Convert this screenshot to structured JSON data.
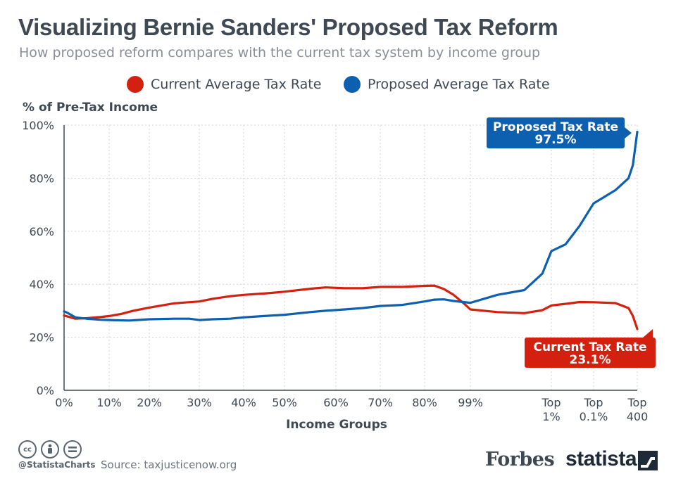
{
  "title": "Visualizing Bernie Sanders' Proposed Tax Reform",
  "subtitle": "How proposed reform compares with the current tax system by income group",
  "colors": {
    "current": "#d4200f",
    "proposed": "#0d5fb0",
    "axis": "#3e4954",
    "grid": "#d0d3d6"
  },
  "footer": {
    "handle": "@StatistaCharts",
    "source": "Source: taxjusticenow.org",
    "forbes": "Forbes",
    "statista": "statista",
    "icons": [
      "cc-icon",
      "by-icon",
      "nd-icon"
    ]
  },
  "chart_data": {
    "type": "line",
    "ylabel": "% of Pre-Tax Income",
    "xlabel": "Income Groups",
    "ylim": [
      0,
      100
    ],
    "yticks": [
      "0%",
      "20%",
      "40%",
      "60%",
      "80%",
      "100%"
    ],
    "x_tick_labels": [
      {
        "x": 0,
        "label": "0%"
      },
      {
        "x": 10,
        "label": "10%"
      },
      {
        "x": 20,
        "label": "20%"
      },
      {
        "x": 30,
        "label": "30%"
      },
      {
        "x": 40,
        "label": "40%"
      },
      {
        "x": 50,
        "label": "50%"
      },
      {
        "x": 60,
        "label": "60%"
      },
      {
        "x": 70,
        "label": "70%"
      },
      {
        "x": 80,
        "label": "80%"
      },
      {
        "x": 99,
        "label": "99%"
      },
      {
        "x": 99.9,
        "label": "Top 1%"
      },
      {
        "x": 99.99,
        "label": "Top 0.1%"
      },
      {
        "x": 100,
        "label": "Top 400"
      }
    ],
    "grid": true,
    "legend_position": "top",
    "series": [
      {
        "name": "Current Average Tax Rate",
        "color": "#d4200f",
        "callout": {
          "title": "Current Tax Rate",
          "value": "23.1%"
        },
        "points": [
          {
            "x": 0,
            "y": 28.2
          },
          {
            "x": 1.5,
            "y": 27.5
          },
          {
            "x": 2.5,
            "y": 27.0
          },
          {
            "x": 5,
            "y": 27.2
          },
          {
            "x": 8,
            "y": 27.6
          },
          {
            "x": 10,
            "y": 28.0
          },
          {
            "x": 13,
            "y": 28.8
          },
          {
            "x": 16,
            "y": 30.0
          },
          {
            "x": 20,
            "y": 31.2
          },
          {
            "x": 25,
            "y": 32.8
          },
          {
            "x": 30,
            "y": 33.5
          },
          {
            "x": 33,
            "y": 34.5
          },
          {
            "x": 37,
            "y": 35.5
          },
          {
            "x": 40,
            "y": 36.0
          },
          {
            "x": 45,
            "y": 36.5
          },
          {
            "x": 50,
            "y": 37.2
          },
          {
            "x": 55,
            "y": 38.3
          },
          {
            "x": 58,
            "y": 38.8
          },
          {
            "x": 62,
            "y": 38.5
          },
          {
            "x": 66,
            "y": 38.5
          },
          {
            "x": 70,
            "y": 39.0
          },
          {
            "x": 75,
            "y": 39.0
          },
          {
            "x": 80,
            "y": 39.4
          },
          {
            "x": 84,
            "y": 39.5
          },
          {
            "x": 88,
            "y": 38.2
          },
          {
            "x": 92,
            "y": 36.0
          },
          {
            "x": 96,
            "y": 33.0
          },
          {
            "x": 99,
            "y": 30.5
          },
          {
            "x": 99.3,
            "y": 29.5
          },
          {
            "x": 99.6,
            "y": 29.1
          },
          {
            "x": 99.8,
            "y": 30.2
          },
          {
            "x": 99.9,
            "y": 32.0
          },
          {
            "x": 99.93,
            "y": 32.6
          },
          {
            "x": 99.96,
            "y": 33.3
          },
          {
            "x": 99.99,
            "y": 33.2
          },
          {
            "x": 99.995,
            "y": 32.9
          },
          {
            "x": 99.998,
            "y": 31.0
          },
          {
            "x": 99.999,
            "y": 28.0
          },
          {
            "x": 100,
            "y": 23.1
          }
        ]
      },
      {
        "name": "Proposed Average Tax Rate",
        "color": "#0d5fb0",
        "callout": {
          "title": "Proposed Tax Rate",
          "value": "97.5%"
        },
        "points": [
          {
            "x": 0,
            "y": 29.8
          },
          {
            "x": 1,
            "y": 29.0
          },
          {
            "x": 2.5,
            "y": 27.5
          },
          {
            "x": 5,
            "y": 27.0
          },
          {
            "x": 8,
            "y": 26.6
          },
          {
            "x": 10,
            "y": 26.5
          },
          {
            "x": 15,
            "y": 26.3
          },
          {
            "x": 20,
            "y": 26.8
          },
          {
            "x": 25,
            "y": 27.0
          },
          {
            "x": 28,
            "y": 27.0
          },
          {
            "x": 30,
            "y": 26.5
          },
          {
            "x": 33,
            "y": 26.8
          },
          {
            "x": 37,
            "y": 27.0
          },
          {
            "x": 40,
            "y": 27.5
          },
          {
            "x": 45,
            "y": 28.0
          },
          {
            "x": 50,
            "y": 28.5
          },
          {
            "x": 55,
            "y": 29.5
          },
          {
            "x": 58,
            "y": 30.0
          },
          {
            "x": 62,
            "y": 30.5
          },
          {
            "x": 66,
            "y": 31.0
          },
          {
            "x": 70,
            "y": 31.8
          },
          {
            "x": 75,
            "y": 32.2
          },
          {
            "x": 80,
            "y": 33.5
          },
          {
            "x": 84,
            "y": 34.2
          },
          {
            "x": 88,
            "y": 34.3
          },
          {
            "x": 92,
            "y": 33.7
          },
          {
            "x": 96,
            "y": 33.3
          },
          {
            "x": 99,
            "y": 33.0
          },
          {
            "x": 99.3,
            "y": 36.0
          },
          {
            "x": 99.6,
            "y": 37.8
          },
          {
            "x": 99.8,
            "y": 44.0
          },
          {
            "x": 99.9,
            "y": 52.5
          },
          {
            "x": 99.93,
            "y": 55.0
          },
          {
            "x": 99.96,
            "y": 62.0
          },
          {
            "x": 99.99,
            "y": 70.5
          },
          {
            "x": 99.995,
            "y": 75.5
          },
          {
            "x": 99.998,
            "y": 80.0
          },
          {
            "x": 99.999,
            "y": 85.0
          },
          {
            "x": 100,
            "y": 97.5
          }
        ]
      }
    ]
  }
}
